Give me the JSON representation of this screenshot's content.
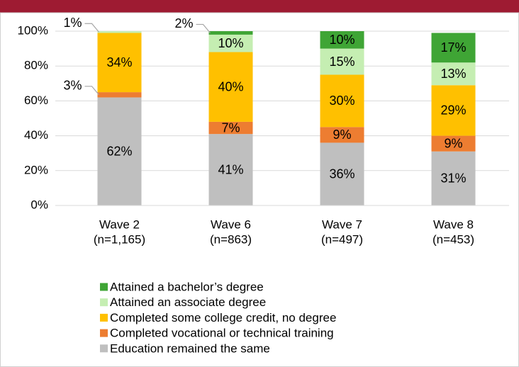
{
  "chart_data": {
    "type": "stacked_bar",
    "categories": [
      [
        "Wave 2",
        "(n=1,165)"
      ],
      [
        "Wave 6",
        "(n=863)"
      ],
      [
        "Wave 7",
        "(n=497)"
      ],
      [
        "Wave 8",
        "(n=453)"
      ]
    ],
    "series": [
      {
        "name": "Education remained the same",
        "color": "#bfbfbf",
        "values": [
          62,
          41,
          36,
          31
        ],
        "value_labels": [
          "62%",
          "41%",
          "36%",
          "31%"
        ]
      },
      {
        "name": "Completed vocational or technical training",
        "color": "#ed7d31",
        "values": [
          3,
          7,
          9,
          9
        ],
        "value_labels": [
          "3%",
          "7%",
          "9%",
          "9%"
        ]
      },
      {
        "name": "Completed some college credit, no degree",
        "color": "#ffc000",
        "values": [
          34,
          40,
          30,
          29
        ],
        "value_labels": [
          "34%",
          "40%",
          "30%",
          "29%"
        ]
      },
      {
        "name": "Attained an associate degree",
        "color": "#c5eeb2",
        "values": [
          1,
          10,
          15,
          13
        ],
        "value_labels": [
          "1%",
          "10%",
          "15%",
          "13%"
        ]
      },
      {
        "name": "Attained a bachelor’s degree",
        "color": "#3fa535",
        "values": [
          null,
          2,
          10,
          17
        ],
        "value_labels": [
          null,
          "2%",
          "10%",
          "17%"
        ]
      }
    ],
    "ylim": [
      0,
      100
    ],
    "yticks": [
      {
        "value": 0,
        "label": "0%"
      },
      {
        "value": 20,
        "label": "20%"
      },
      {
        "value": 40,
        "label": "40%"
      },
      {
        "value": 60,
        "label": "60%"
      },
      {
        "value": 80,
        "label": "80%"
      },
      {
        "value": 100,
        "label": "100%"
      }
    ],
    "grid": true
  }
}
